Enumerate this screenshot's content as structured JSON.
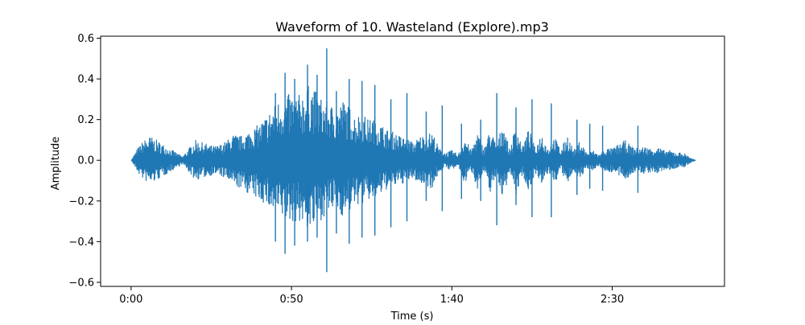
{
  "chart_data": {
    "type": "line",
    "title": "Waveform of 10. Wasteland (Explore).mp3",
    "xlabel": "Time (s)",
    "ylabel": "Amplitude",
    "xlim": [
      -9.5,
      185
    ],
    "ylim": [
      -0.62,
      0.61
    ],
    "grid": false,
    "legend": "none",
    "color": "#1f77b4",
    "x_ticks": [
      {
        "value": 0,
        "label": "0:00"
      },
      {
        "value": 50,
        "label": "0:50"
      },
      {
        "value": 100,
        "label": "1:40"
      },
      {
        "value": 150,
        "label": "2:30"
      }
    ],
    "y_ticks": [
      {
        "value": -0.6,
        "label": "−0.6"
      },
      {
        "value": -0.4,
        "label": "−0.4"
      },
      {
        "value": -0.2,
        "label": "−0.2"
      },
      {
        "value": 0.0,
        "label": "0.0"
      },
      {
        "value": 0.2,
        "label": "0.2"
      },
      {
        "value": 0.4,
        "label": "0.4"
      },
      {
        "value": 0.6,
        "label": "0.6"
      }
    ],
    "envelope": {
      "x": [
        0,
        2,
        4,
        6,
        8,
        10,
        12,
        14,
        16,
        18,
        20,
        22,
        24,
        26,
        28,
        30,
        32,
        34,
        36,
        38,
        40,
        42,
        44,
        46,
        48,
        50,
        52,
        54,
        56,
        58,
        60,
        62,
        64,
        66,
        68,
        70,
        72,
        74,
        76,
        78,
        80,
        82,
        84,
        86,
        88,
        90,
        92,
        94,
        96,
        98,
        100,
        102,
        104,
        106,
        108,
        110,
        112,
        114,
        116,
        118,
        120,
        122,
        124,
        126,
        128,
        130,
        132,
        134,
        136,
        138,
        140,
        142,
        144,
        146,
        148,
        150,
        152,
        154,
        156,
        158,
        160,
        162,
        164,
        166,
        168,
        170,
        172,
        174,
        176
      ],
      "upper": [
        0.0,
        0.06,
        0.1,
        0.12,
        0.1,
        0.08,
        0.06,
        0.04,
        0.02,
        0.06,
        0.1,
        0.09,
        0.08,
        0.07,
        0.08,
        0.1,
        0.13,
        0.12,
        0.14,
        0.16,
        0.18,
        0.22,
        0.26,
        0.3,
        0.32,
        0.33,
        0.32,
        0.35,
        0.38,
        0.33,
        0.3,
        0.28,
        0.26,
        0.3,
        0.27,
        0.22,
        0.24,
        0.2,
        0.22,
        0.18,
        0.15,
        0.14,
        0.12,
        0.11,
        0.09,
        0.12,
        0.13,
        0.14,
        0.06,
        0.04,
        0.05,
        0.03,
        0.12,
        0.05,
        0.14,
        0.06,
        0.16,
        0.07,
        0.2,
        0.05,
        0.18,
        0.07,
        0.16,
        0.06,
        0.14,
        0.06,
        0.12,
        0.05,
        0.13,
        0.05,
        0.1,
        0.04,
        0.05,
        0.03,
        0.06,
        0.06,
        0.08,
        0.1,
        0.07,
        0.06,
        0.07,
        0.06,
        0.07,
        0.05,
        0.05,
        0.04,
        0.04,
        0.02,
        0.0
      ],
      "lower": [
        0.0,
        -0.06,
        -0.1,
        -0.12,
        -0.1,
        -0.08,
        -0.06,
        -0.04,
        -0.02,
        -0.06,
        -0.1,
        -0.09,
        -0.08,
        -0.07,
        -0.08,
        -0.1,
        -0.13,
        -0.14,
        -0.16,
        -0.18,
        -0.2,
        -0.22,
        -0.26,
        -0.28,
        -0.3,
        -0.31,
        -0.3,
        -0.33,
        -0.35,
        -0.32,
        -0.28,
        -0.26,
        -0.24,
        -0.28,
        -0.26,
        -0.22,
        -0.22,
        -0.2,
        -0.2,
        -0.17,
        -0.14,
        -0.13,
        -0.12,
        -0.11,
        -0.09,
        -0.12,
        -0.13,
        -0.14,
        -0.06,
        -0.04,
        -0.05,
        -0.03,
        -0.12,
        -0.05,
        -0.14,
        -0.06,
        -0.16,
        -0.07,
        -0.2,
        -0.05,
        -0.18,
        -0.07,
        -0.16,
        -0.06,
        -0.14,
        -0.06,
        -0.12,
        -0.05,
        -0.13,
        -0.05,
        -0.1,
        -0.04,
        -0.05,
        -0.03,
        -0.06,
        -0.06,
        -0.08,
        -0.1,
        -0.07,
        -0.06,
        -0.07,
        -0.06,
        -0.07,
        -0.05,
        -0.05,
        -0.04,
        -0.04,
        -0.02,
        0.0
      ]
    },
    "spikes": [
      {
        "x": 45,
        "max": 0.33,
        "min": -0.4
      },
      {
        "x": 48,
        "max": 0.43,
        "min": -0.46
      },
      {
        "x": 51,
        "max": 0.4,
        "min": -0.42
      },
      {
        "x": 55,
        "max": 0.47,
        "min": -0.4
      },
      {
        "x": 58,
        "max": 0.42,
        "min": -0.38
      },
      {
        "x": 61,
        "max": 0.55,
        "min": -0.55
      },
      {
        "x": 64,
        "max": 0.34,
        "min": -0.36
      },
      {
        "x": 68,
        "max": 0.4,
        "min": -0.41
      },
      {
        "x": 72,
        "max": 0.39,
        "min": -0.38
      },
      {
        "x": 76,
        "max": 0.37,
        "min": -0.37
      },
      {
        "x": 81,
        "max": 0.3,
        "min": -0.33
      },
      {
        "x": 86,
        "max": 0.33,
        "min": -0.3
      },
      {
        "x": 92,
        "max": 0.24,
        "min": -0.2
      },
      {
        "x": 97,
        "max": 0.27,
        "min": -0.25
      },
      {
        "x": 103,
        "max": 0.18,
        "min": -0.19
      },
      {
        "x": 109,
        "max": 0.2,
        "min": -0.2
      },
      {
        "x": 114,
        "max": 0.33,
        "min": -0.32
      },
      {
        "x": 120,
        "max": 0.26,
        "min": -0.22
      },
      {
        "x": 125,
        "max": 0.3,
        "min": -0.28
      },
      {
        "x": 131,
        "max": 0.28,
        "min": -0.28
      },
      {
        "x": 139,
        "max": 0.2,
        "min": -0.17
      },
      {
        "x": 143,
        "max": 0.18,
        "min": -0.14
      },
      {
        "x": 147,
        "max": 0.17,
        "min": -0.15
      },
      {
        "x": 158,
        "max": 0.17,
        "min": -0.16
      }
    ]
  }
}
